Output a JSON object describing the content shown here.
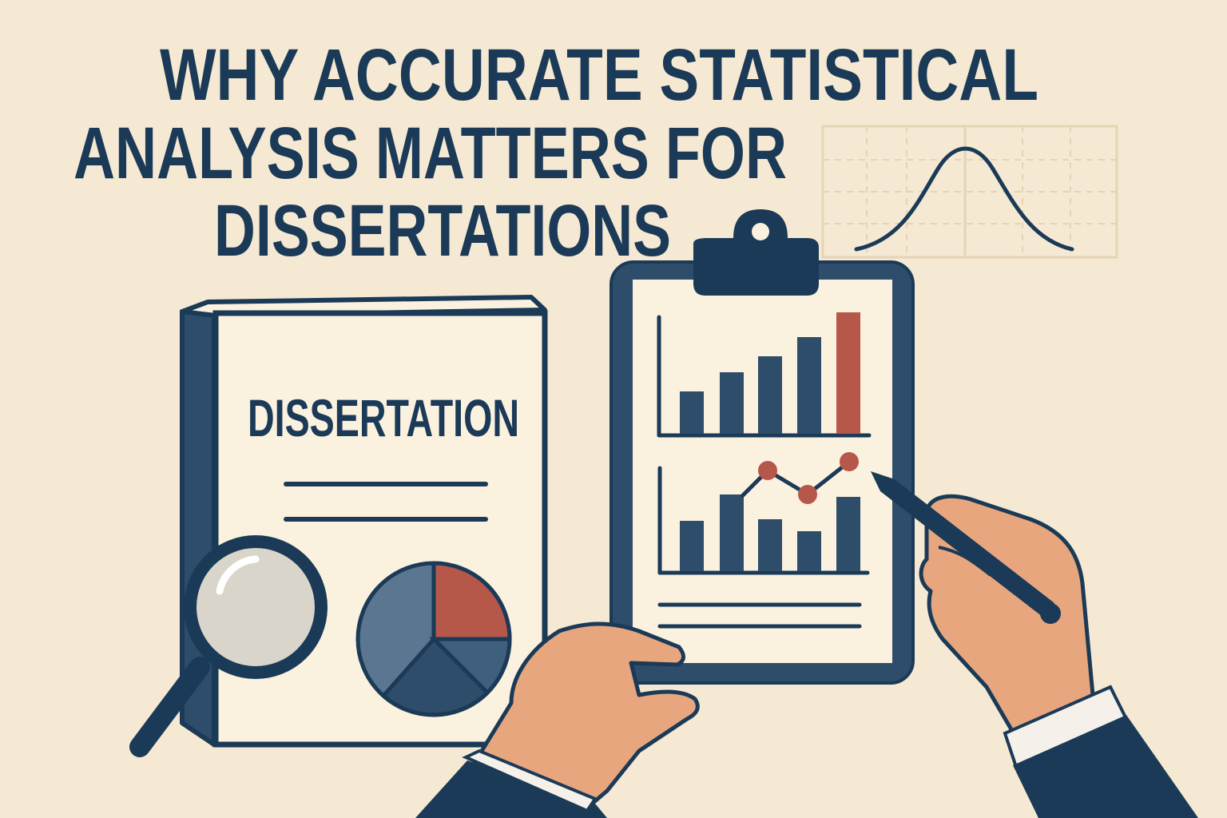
{
  "title": {
    "lines": [
      "WHY ACCURATE STATISTICAL",
      "ANALYSIS MATTERS FOR",
      "DISSERTATIONS"
    ]
  },
  "book": {
    "cover_label": "DISSERTATION",
    "pie_colors": [
      "#5a7690",
      "#b5584a",
      "#2e4d6b"
    ]
  },
  "clipboard": {
    "bar_chart_colors": [
      "#2e4d6b",
      "#2e4d6b",
      "#2e4d6b",
      "#2e4d6b",
      "#b5584a"
    ]
  },
  "icons": [
    "magnifying-glass-icon",
    "pen-icon",
    "bell-curve-icon",
    "clipboard-icon",
    "book-icon"
  ],
  "colors": {
    "background": "#f5e9d3",
    "navy": "#1b3a57",
    "slate": "#2e4d6b",
    "accent_red": "#b5584a",
    "skin": "#e8a67e",
    "paper": "#fbf1df"
  }
}
